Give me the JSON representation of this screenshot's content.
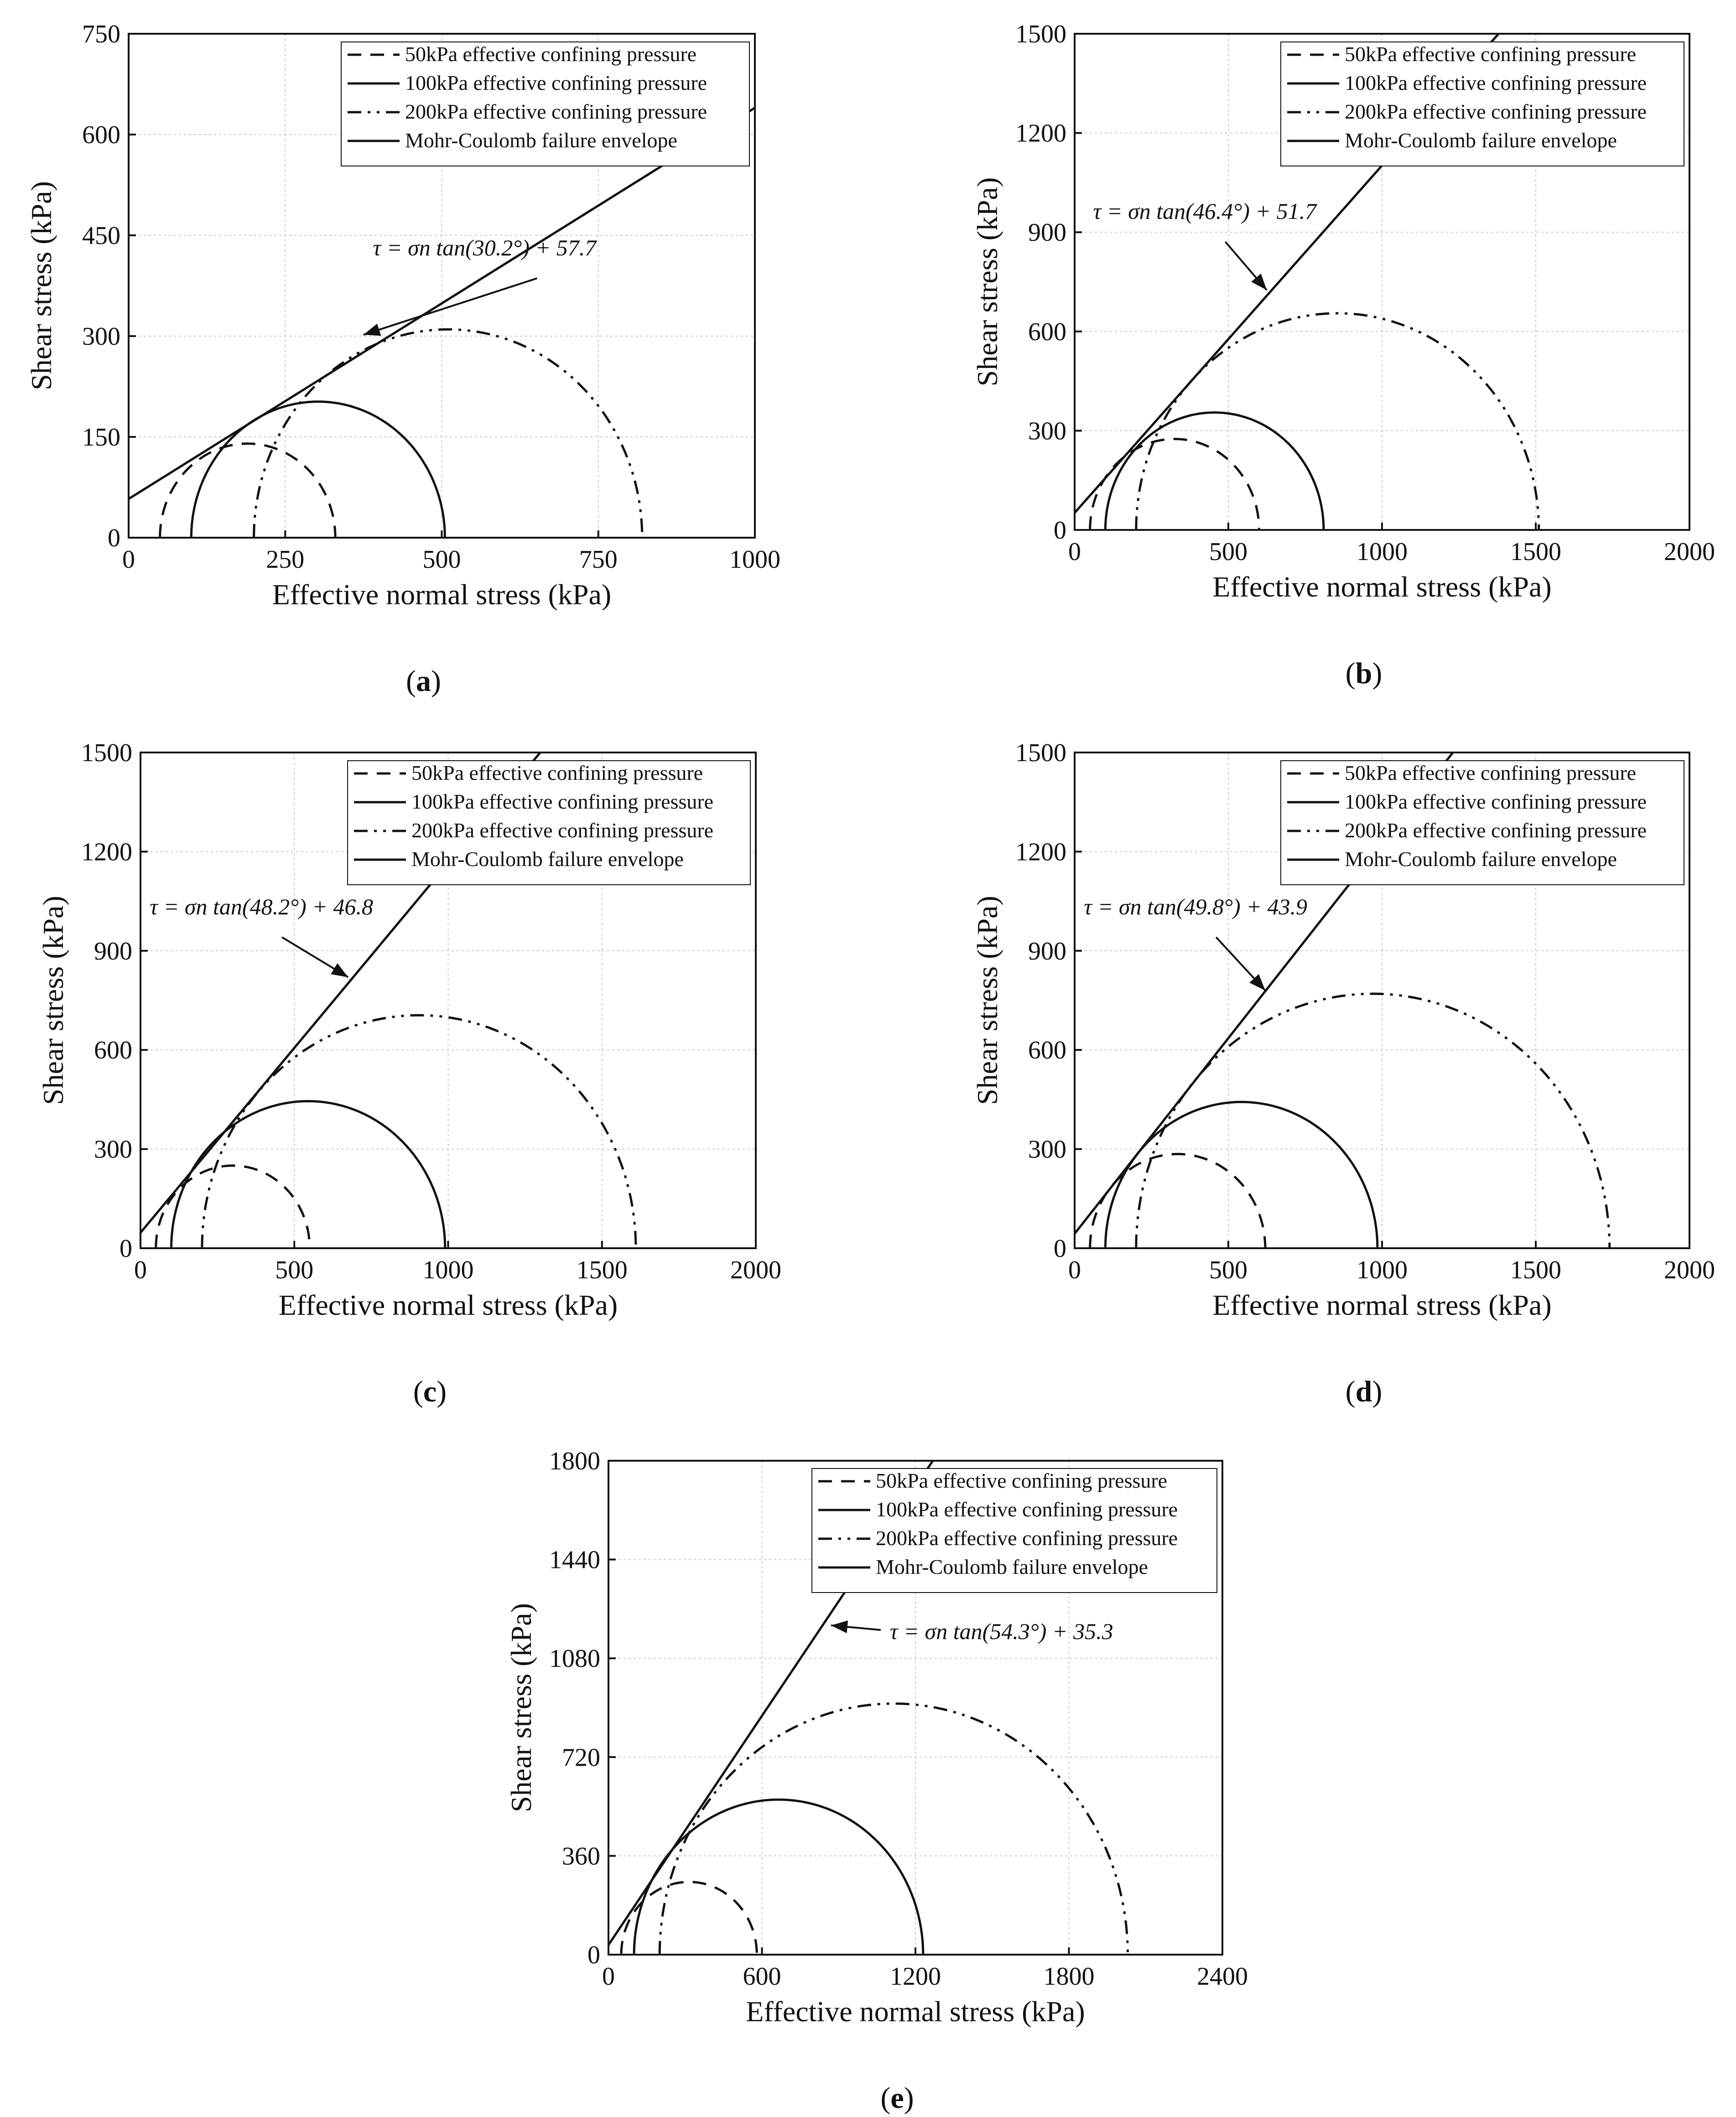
{
  "figure": {
    "panels": [
      {
        "label_open": "(",
        "label": "a",
        "label_close": ")",
        "equation": "τ = σn tan(30.2°) + 57.7"
      },
      {
        "label_open": "(",
        "label": "b",
        "label_close": ")",
        "equation": "τ = σn tan(46.4°) + 51.7"
      },
      {
        "label_open": "(",
        "label": "c",
        "label_close": ")",
        "equation": "τ = σn tan(48.2°) + 46.8"
      },
      {
        "label_open": "(",
        "label": "d",
        "label_close": ")",
        "equation": "τ = σn tan(49.8°) + 43.9"
      },
      {
        "label_open": "(",
        "label": "e",
        "label_close": ")",
        "equation": "τ = σn tan(54.3°) + 35.3"
      }
    ]
  },
  "chart_data": [
    {
      "type": "line",
      "panel": "a",
      "xlabel": "Effective normal stress (kPa)",
      "ylabel": "Shear stress (kPa)",
      "xlim": [
        0,
        1000
      ],
      "ylim": [
        0,
        750
      ],
      "xticks": [
        0,
        250,
        500,
        750,
        1000
      ],
      "yticks": [
        0,
        150,
        300,
        450,
        600,
        750
      ],
      "grid": true,
      "legend": [
        "50kPa   effective confining pressure",
        "100kPa effective confining pressure",
        "200kPa effective confining pressure",
        "Mohr-Coulomb failure envelope"
      ],
      "series": [
        {
          "name": "50kPa   effective confining pressure",
          "style": "dashed",
          "circle": {
            "sigma3": 50,
            "sigma1": 330
          }
        },
        {
          "name": "100kPa effective confining pressure",
          "style": "solid",
          "circle": {
            "sigma3": 100,
            "sigma1": 505
          }
        },
        {
          "name": "200kPa effective confining pressure",
          "style": "dash-dot-dot",
          "circle": {
            "sigma3": 200,
            "sigma1": 820
          }
        },
        {
          "name": "Mohr-Coulomb failure envelope",
          "style": "solid",
          "envelope": {
            "phi_deg": 30.2,
            "c": 57.7
          }
        }
      ],
      "annotation": {
        "text": "τ = σn tan(30.2°) + 57.7",
        "x": 390,
        "y": 420,
        "arrow_to": [
          375,
          302
        ]
      }
    },
    {
      "type": "line",
      "panel": "b",
      "xlabel": "Effective normal stress (kPa)",
      "ylabel": "Shear stress (kPa)",
      "xlim": [
        0,
        2000
      ],
      "ylim": [
        0,
        1500
      ],
      "xticks": [
        0,
        500,
        1000,
        1500,
        2000
      ],
      "yticks": [
        0,
        300,
        600,
        900,
        1200,
        1500
      ],
      "grid": true,
      "legend": [
        "50kPa   effective confining pressure",
        "100kPa effective confining pressure",
        "200kPa effective confining pressure",
        "Mohr-Coulomb failure envelope"
      ],
      "series": [
        {
          "name": "50kPa   effective confining pressure",
          "style": "dashed",
          "circle": {
            "sigma3": 50,
            "sigma1": 600
          }
        },
        {
          "name": "100kPa effective confining pressure",
          "style": "solid",
          "circle": {
            "sigma3": 100,
            "sigma1": 810
          }
        },
        {
          "name": "200kPa effective confining pressure",
          "style": "dash-dot-dot",
          "circle": {
            "sigma3": 200,
            "sigma1": 1510
          }
        },
        {
          "name": "Mohr-Coulomb failure envelope",
          "style": "solid",
          "envelope": {
            "phi_deg": 46.4,
            "c": 51.7
          }
        }
      ],
      "annotation": {
        "text": "τ = σn tan(46.4°) + 51.7",
        "x": 60,
        "y": 940,
        "arrow_to": [
          625,
          725
        ]
      }
    },
    {
      "type": "line",
      "panel": "c",
      "xlabel": "Effective normal stress (kPa)",
      "ylabel": "Shear stress (kPa)",
      "xlim": [
        0,
        2000
      ],
      "ylim": [
        0,
        1500
      ],
      "xticks": [
        0,
        500,
        1000,
        1500,
        2000
      ],
      "yticks": [
        0,
        300,
        600,
        900,
        1200,
        1500
      ],
      "grid": true,
      "legend": [
        "50kPa   effective confining pressure",
        "100kPa effective confining pressure",
        "200kPa effective confining pressure",
        "Mohr-Coulomb failure envelope"
      ],
      "series": [
        {
          "name": "50kPa   effective confining pressure",
          "style": "dashed",
          "circle": {
            "sigma3": 50,
            "sigma1": 550
          }
        },
        {
          "name": "100kPa effective confining pressure",
          "style": "solid",
          "circle": {
            "sigma3": 100,
            "sigma1": 990
          }
        },
        {
          "name": "200kPa effective confining pressure",
          "style": "dash-dot-dot",
          "circle": {
            "sigma3": 200,
            "sigma1": 1610
          }
        },
        {
          "name": "Mohr-Coulomb failure envelope",
          "style": "solid",
          "envelope": {
            "phi_deg": 48.2,
            "c": 46.8
          }
        }
      ],
      "annotation": {
        "text": "τ = σn tan(48.2°) + 46.8",
        "x": 30,
        "y": 1010,
        "arrow_to": [
          675,
          820
        ]
      }
    },
    {
      "type": "line",
      "panel": "d",
      "xlabel": "Effective normal stress (kPa)",
      "ylabel": "Shear stress (kPa)",
      "xlim": [
        0,
        2000
      ],
      "ylim": [
        0,
        1500
      ],
      "xticks": [
        0,
        500,
        1000,
        1500,
        2000
      ],
      "yticks": [
        0,
        300,
        600,
        900,
        1200,
        1500
      ],
      "grid": true,
      "legend": [
        "50kPa   effective confining pressure",
        "100kPa effective confining pressure",
        "200kPa effective confining pressure",
        "Mohr-Coulomb failure envelope"
      ],
      "series": [
        {
          "name": "50kPa   effective confining pressure",
          "style": "dashed",
          "circle": {
            "sigma3": 50,
            "sigma1": 620
          }
        },
        {
          "name": "100kPa effective confining pressure",
          "style": "solid",
          "circle": {
            "sigma3": 100,
            "sigma1": 985
          }
        },
        {
          "name": "200kPa effective confining pressure",
          "style": "dash-dot-dot",
          "circle": {
            "sigma3": 200,
            "sigma1": 1740
          }
        },
        {
          "name": "Mohr-Coulomb failure envelope",
          "style": "solid",
          "envelope": {
            "phi_deg": 49.8,
            "c": 43.9
          }
        }
      ],
      "annotation": {
        "text": "τ = σn tan(49.8°) + 43.9",
        "x": 30,
        "y": 1010,
        "arrow_to": [
          620,
          780
        ]
      }
    },
    {
      "type": "line",
      "panel": "e",
      "xlabel": "Effective normal stress (kPa)",
      "ylabel": "Shear stress (kPa)",
      "xlim": [
        0,
        2400
      ],
      "ylim": [
        0,
        1800
      ],
      "xticks": [
        0,
        600,
        1200,
        1800,
        2400
      ],
      "yticks": [
        0,
        360,
        720,
        1080,
        1440,
        1800
      ],
      "grid": true,
      "legend": [
        "50kPa   effective confining pressure",
        "100kPa effective confining pressure",
        "200kPa effective confining pressure",
        "Mohr-Coulomb failure envelope"
      ],
      "series": [
        {
          "name": "50kPa   effective confining pressure",
          "style": "dashed",
          "circle": {
            "sigma3": 50,
            "sigma1": 580
          }
        },
        {
          "name": "100kPa effective confining pressure",
          "style": "solid",
          "circle": {
            "sigma3": 100,
            "sigma1": 1230
          }
        },
        {
          "name": "200kPa effective confining pressure",
          "style": "dash-dot-dot",
          "circle": {
            "sigma3": 200,
            "sigma1": 2030
          }
        },
        {
          "name": "Mohr-Coulomb failure envelope",
          "style": "solid",
          "envelope": {
            "phi_deg": 54.3,
            "c": 35.3
          }
        }
      ],
      "annotation": {
        "text": "τ = σn tan(54.3°) + 35.3",
        "x": 1100,
        "y": 1150,
        "arrow_to": [
          870,
          1200
        ]
      }
    }
  ]
}
